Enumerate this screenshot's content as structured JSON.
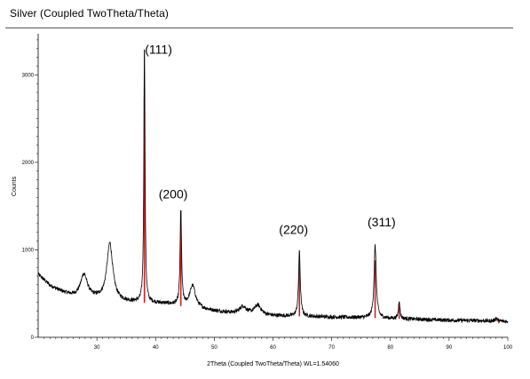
{
  "chart_data": {
    "type": "line",
    "title": "Silver (Coupled TwoTheta/Theta)",
    "xlabel": "2Theta (Coupled TwoTheta/Theta) WL=1.54060",
    "ylabel": "Counts",
    "xlim": [
      20,
      100
    ],
    "ylim": [
      0,
      3450
    ],
    "xticks": [
      30,
      40,
      50,
      60,
      70,
      80,
      90,
      100
    ],
    "yticks": [
      0,
      1000,
      2000,
      3000
    ],
    "grid": false,
    "baseline": [
      [
        20,
        720
      ],
      [
        22,
        590
      ],
      [
        24,
        520
      ],
      [
        26,
        470
      ],
      [
        30,
        440
      ],
      [
        34,
        410
      ],
      [
        36,
        400
      ],
      [
        40,
        390
      ],
      [
        42,
        380
      ],
      [
        44,
        360
      ],
      [
        48,
        320
      ],
      [
        50,
        300
      ],
      [
        55,
        260
      ],
      [
        60,
        245
      ],
      [
        65,
        240
      ],
      [
        70,
        230
      ],
      [
        75,
        225
      ],
      [
        80,
        215
      ],
      [
        85,
        205
      ],
      [
        90,
        195
      ],
      [
        95,
        190
      ],
      [
        100,
        180
      ]
    ],
    "peaks": [
      {
        "x": 27.8,
        "height": 260,
        "width": 0.7
      },
      {
        "x": 32.2,
        "height": 650,
        "width": 0.6
      },
      {
        "x": 38.1,
        "height": 2980,
        "width": 0.12
      },
      {
        "x": 44.3,
        "height": 1080,
        "width": 0.15
      },
      {
        "x": 46.3,
        "height": 250,
        "width": 0.6
      },
      {
        "x": 54.9,
        "height": 90,
        "width": 0.7
      },
      {
        "x": 57.4,
        "height": 110,
        "width": 0.7
      },
      {
        "x": 64.5,
        "height": 740,
        "width": 0.18
      },
      {
        "x": 77.4,
        "height": 830,
        "width": 0.22
      },
      {
        "x": 81.5,
        "height": 210,
        "width": 0.15
      },
      {
        "x": 98.0,
        "height": 40,
        "width": 0.2
      }
    ],
    "reference_lines": [
      {
        "x": 38.1,
        "value": 2750
      },
      {
        "x": 44.3,
        "value": 1450
      },
      {
        "x": 64.5,
        "value": 880
      },
      {
        "x": 77.4,
        "value": 880
      },
      {
        "x": 81.5,
        "value": 390
      },
      {
        "x": 98.0,
        "value": 230
      }
    ],
    "peak_labels": [
      {
        "text": "(111)",
        "x": 40.5,
        "y": 3240
      },
      {
        "text": "(200)",
        "x": 43.0,
        "y": 1590
      },
      {
        "text": "(220)",
        "x": 63.5,
        "y": 1180
      },
      {
        "text": "(311)",
        "x": 78.5,
        "y": 1270
      }
    ],
    "colors": {
      "pattern": "#000000",
      "reference": "#cc2222"
    }
  }
}
